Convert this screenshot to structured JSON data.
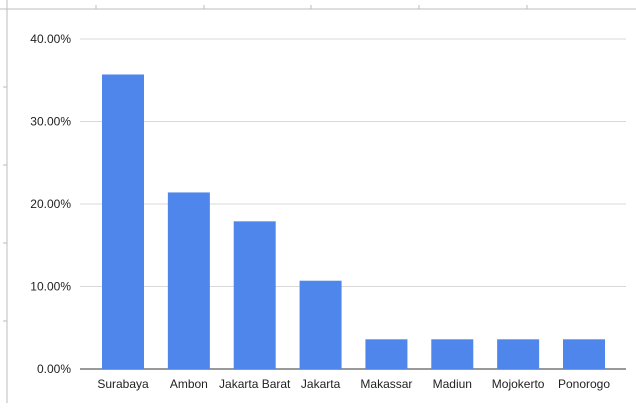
{
  "chart_data": {
    "type": "bar",
    "title": "",
    "xlabel": "",
    "ylabel": "",
    "categories": [
      "Surabaya",
      "Ambon",
      "Jakarta Barat",
      "Jakarta",
      "Makassar",
      "Madiun",
      "Mojokerto",
      "Ponorogo"
    ],
    "series": [
      {
        "values": [
          35.7,
          21.4,
          17.9,
          10.7,
          3.6,
          3.6,
          3.6,
          3.6
        ]
      }
    ],
    "ylim": [
      0,
      40
    ],
    "y_ticks": [
      {
        "value": 0,
        "label": "0.00%"
      },
      {
        "value": 10,
        "label": "10.00%"
      },
      {
        "value": 20,
        "label": "20.00%"
      },
      {
        "value": 30,
        "label": "30.00%"
      },
      {
        "value": 40,
        "label": "40.00%"
      }
    ],
    "grid": true,
    "legend": "none",
    "colors": {
      "bar": "#4f86ec",
      "grid": "#d9d9d9",
      "axis": "#333333",
      "frame": "#bdbdbd"
    }
  }
}
